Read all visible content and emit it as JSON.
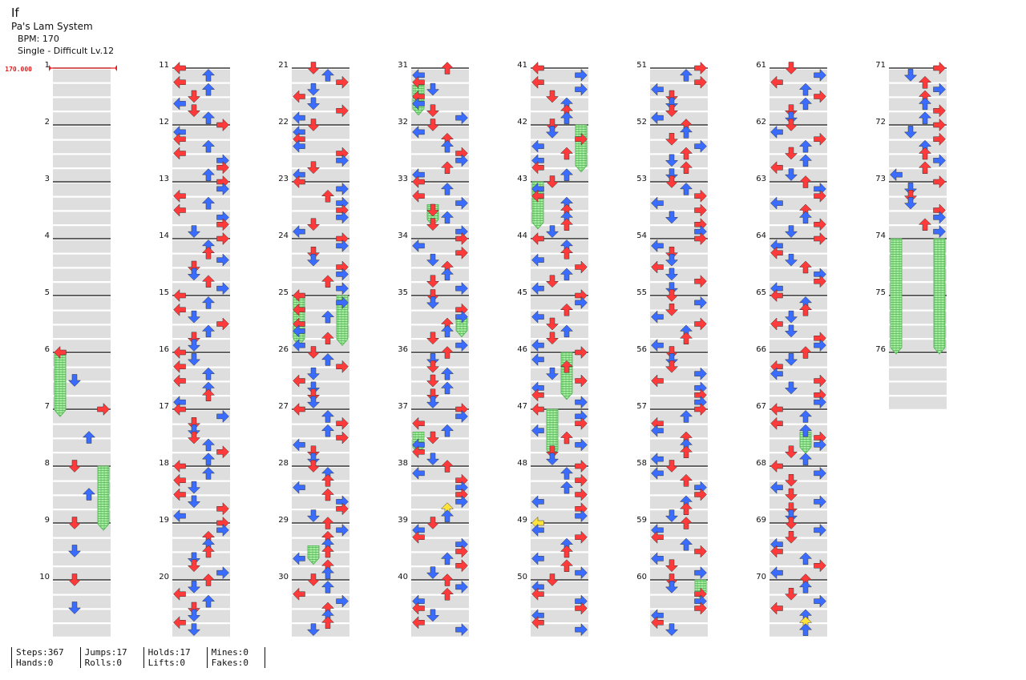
{
  "song": {
    "title": "If",
    "artist": "Pa's Lam System",
    "bpm_label": "BPM: 170",
    "chart_label": "Single - Difficult Lv.12"
  },
  "bpm_marker": "170.000",
  "colors": {
    "red": "#ff3a3a",
    "blue": "#3a6cff",
    "yellow": "#ffe23a",
    "hold": "#8ede8e",
    "row_shade": "#dedede"
  },
  "measures": [
    "1",
    "2",
    "3",
    "4",
    "5",
    "6",
    "7",
    "8",
    "9",
    "10",
    "11",
    "12",
    "13",
    "14",
    "15",
    "16",
    "17",
    "18",
    "19",
    "20",
    "21",
    "22",
    "23",
    "24",
    "25",
    "26",
    "27",
    "28",
    "29",
    "30",
    "31",
    "32",
    "33",
    "34",
    "35",
    "36",
    "37",
    "38",
    "39",
    "40",
    "41",
    "42",
    "43",
    "44",
    "45",
    "46",
    "47",
    "48",
    "49",
    "50",
    "51",
    "52",
    "53",
    "54",
    "55",
    "56",
    "57",
    "58",
    "59",
    "60",
    "61",
    "62",
    "63",
    "64",
    "65",
    "66",
    "67",
    "68",
    "69",
    "70",
    "71",
    "72",
    "73",
    "74",
    "75",
    "76"
  ],
  "stats": [
    [
      "Steps:367",
      "Hands:0"
    ],
    [
      "Jumps:17",
      "Rolls:0"
    ],
    [
      "Holds:17",
      "Lifts:0"
    ],
    [
      "Mines:0",
      "Fakes:0"
    ]
  ]
}
